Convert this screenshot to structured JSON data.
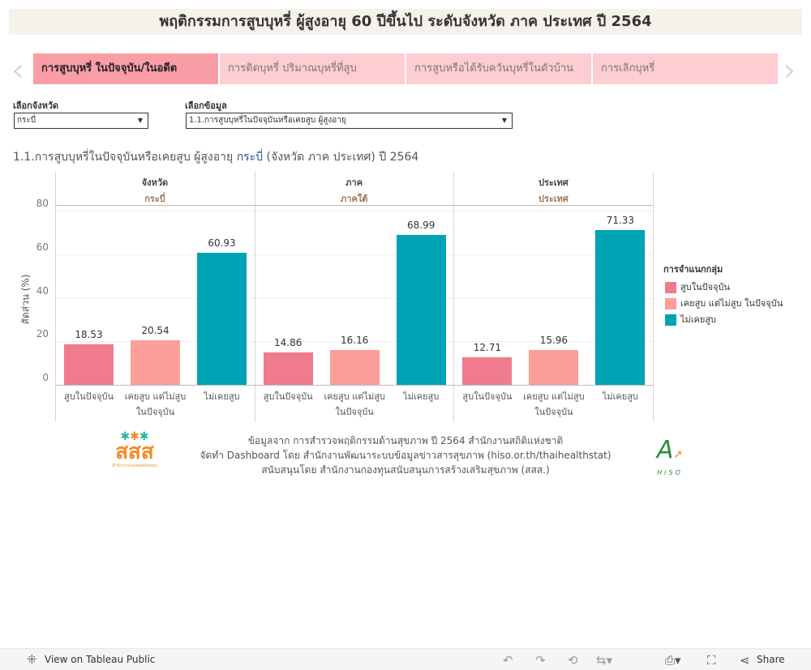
{
  "title": "พฤติกรรมการสูบบุหรี่ ผู้สูงอายุ 60 ปีขึ้นไป ระดับจังหวัด ภาค ประเทศ ปี 2564",
  "tabs": [
    {
      "label": "การสูบบุหรี่ ในปัจจุบัน/ในอดีต",
      "active": true
    },
    {
      "label": "การติดบุหรี่ ปริมาณบุหรี่ที่สูบ",
      "active": false
    },
    {
      "label": "การสูบหรือได้รับควันบุหรี่ในตัวบ้าน",
      "active": false
    },
    {
      "label": "การเลิกบุหรี่",
      "active": false
    }
  ],
  "filters": {
    "province_label": "เลือกจังหวัด",
    "province_value": "กระบี่",
    "data_label": "เลือกข้อมูล",
    "data_value": "1.1.การสูบบุหรี่ในปัจจุบันหรือเคยสูบ ผู้สูงอายุ"
  },
  "chart_title": {
    "prefix": "1.1.การสูบบุหรี่ในปัจจุบันหรือเคยสูบ ผู้สูงอายุ ",
    "highlight": "กระบี่",
    "suffix": " (จังหวัด ภาค ประเทศ) ปี 2564"
  },
  "colors": {
    "current": "#f07a8e",
    "former": "#fd9e9a",
    "never": "#00a3b4",
    "accent": "#2f5597",
    "header_sub": "#a0755a"
  },
  "chart_data": {
    "type": "bar",
    "ylabel": "สัดส่วน (%)",
    "ylim": [
      0,
      82
    ],
    "yticks": [
      0,
      20,
      40,
      60,
      80
    ],
    "grid": true,
    "legend_position": "right",
    "legend_title": "การจำแนกกลุ่ม",
    "categories": [
      "สูบในปัจจุบัน",
      "เคยสูบ แต่ไม่สูบ ในปัจจุบัน",
      "ไม่เคยสูบ"
    ],
    "panels": [
      {
        "header": "จังหวัด",
        "sub": "กระบี่",
        "values": [
          18.53,
          20.54,
          60.93
        ]
      },
      {
        "header": "ภาค",
        "sub": "ภาคใต้",
        "values": [
          14.86,
          16.16,
          68.99
        ]
      },
      {
        "header": "ประเทศ",
        "sub": "ประเทศ",
        "values": [
          12.71,
          15.96,
          71.33
        ]
      }
    ],
    "legend": [
      "สูบในปัจจุบัน",
      "เคยสูบ แต่ไม่สูบ ในปัจจุบัน",
      "ไม่เคยสูบ"
    ]
  },
  "footer": {
    "lines": [
      "ข้อมูลจาก การสำรวจพฤติกรรมด้านสุขภาพ ปี 2564 สำนักงานสถิติแห่งชาติ",
      "จัดทำ Dashboard โดย สำนักงานพัฒนาระบบข้อมูลข่าวสารสุขภาพ (hiso.or.th/thaihealthstat)",
      "สนับสนุนโดย สำนักงานกองทุนสนับสนุนการสร้างเสริมสุขภาพ (สสส.)"
    ],
    "logo_left": "สสส",
    "logo_right": "HISO"
  },
  "toolbar": {
    "view_label": "View on Tableau Public",
    "share_label": "Share"
  }
}
